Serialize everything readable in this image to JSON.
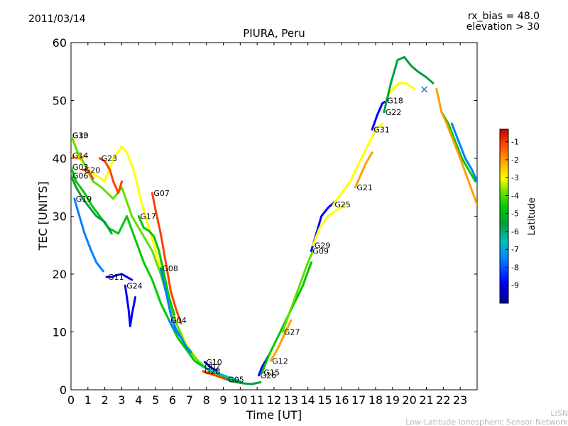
{
  "header": {
    "date": "2011/03/14",
    "rx_bias": "rx_bias = 48.0",
    "elevation": "elevation > 30"
  },
  "credit": {
    "line1": "LISN",
    "line2": "Low-Latitude Ionospheric Sensor Network"
  },
  "colors": {
    "latitude_scale": [
      "#00008f",
      "#0000ff",
      "#0080ff",
      "#00c0c0",
      "#00a040",
      "#00c800",
      "#60e000",
      "#ffff00",
      "#ffa000",
      "#ff4000",
      "#c00000"
    ]
  },
  "chart_data": {
    "type": "scatter",
    "title": "PIURA, Peru",
    "xlabel": "Time [UT]",
    "ylabel": "TEC [UNITS]",
    "xlim": [
      0,
      24
    ],
    "ylim": [
      0,
      60
    ],
    "xticks": [
      "0",
      "1",
      "2",
      "3",
      "4",
      "5",
      "6",
      "7",
      "8",
      "9",
      "10",
      "11",
      "12",
      "13",
      "14",
      "15",
      "16",
      "17",
      "18",
      "19",
      "20",
      "21",
      "22",
      "23"
    ],
    "yticks": [
      "0",
      "10",
      "20",
      "30",
      "40",
      "50",
      "60"
    ],
    "colorbar": {
      "label": "Latitude",
      "range": [
        -10,
        -0.3
      ],
      "ticks": [
        "-1",
        "-2",
        "-3",
        "-4",
        "-5",
        "-6",
        "-7",
        "-8",
        "-9"
      ]
    },
    "marker_label": "×",
    "series": [
      {
        "name": "G13",
        "color_lat": -3,
        "points": [
          [
            0,
            44
          ],
          [
            0.5,
            40
          ],
          [
            1,
            38
          ],
          [
            1.5,
            37
          ],
          [
            2,
            36
          ],
          [
            2.5,
            40
          ],
          [
            3,
            42
          ],
          [
            3.3,
            41
          ],
          [
            3.7,
            38
          ],
          [
            4.2,
            32
          ],
          [
            4.8,
            26
          ],
          [
            5.3,
            21
          ],
          [
            5.8,
            15
          ],
          [
            6.3,
            11
          ],
          [
            6.8,
            8
          ],
          [
            7.5,
            5
          ],
          [
            8.3,
            3
          ],
          [
            9,
            2
          ],
          [
            10,
            1.2
          ]
        ]
      },
      {
        "name": "G30",
        "color_lat": -4.5,
        "points": [
          [
            0,
            44
          ],
          [
            0.4,
            41
          ],
          [
            0.8,
            39
          ],
          [
            1.3,
            36
          ],
          [
            1.8,
            35
          ],
          [
            2.5,
            33
          ],
          [
            3,
            35
          ],
          [
            3.6,
            30
          ],
          [
            4.2,
            27
          ],
          [
            4.8,
            24
          ],
          [
            5.3,
            20
          ],
          [
            5.8,
            15
          ],
          [
            6.3,
            11
          ],
          [
            6.8,
            7.5
          ],
          [
            7.5,
            5
          ],
          [
            8.3,
            3
          ],
          [
            9,
            2
          ],
          [
            10,
            1.2
          ]
        ]
      },
      {
        "name": "G14",
        "color_lat": -2,
        "points": [
          [
            0,
            40.5
          ],
          [
            0.3,
            40
          ],
          [
            0.6,
            40
          ],
          [
            0.8,
            40.5
          ]
        ]
      },
      {
        "name": "G03",
        "color_lat": -5,
        "points": [
          [
            0,
            38.5
          ],
          [
            0.3,
            36
          ],
          [
            0.8,
            34
          ],
          [
            1.2,
            32
          ],
          [
            1.7,
            30
          ],
          [
            2.2,
            28
          ],
          [
            2.8,
            27
          ],
          [
            3.3,
            30
          ],
          [
            3.8,
            26
          ],
          [
            4.3,
            22
          ],
          [
            4.8,
            19
          ],
          [
            5.3,
            15
          ],
          [
            5.8,
            12
          ],
          [
            6.3,
            9
          ],
          [
            6.8,
            7
          ],
          [
            7.3,
            5
          ],
          [
            7.8,
            4
          ],
          [
            8.5,
            3
          ],
          [
            9.3,
            2
          ]
        ]
      },
      {
        "name": "G06",
        "color_lat": -6,
        "points": [
          [
            0,
            37
          ],
          [
            0.3,
            35
          ],
          [
            0.7,
            33
          ],
          [
            1.1,
            31.5
          ],
          [
            1.5,
            30
          ],
          [
            2,
            29
          ],
          [
            2.4,
            27
          ]
        ]
      },
      {
        "name": "G20",
        "color_lat": -1.5,
        "points": [
          [
            0.7,
            38
          ],
          [
            0.9,
            38
          ],
          [
            1.1,
            37.5
          ],
          [
            1.3,
            36.5
          ]
        ]
      },
      {
        "name": "G23",
        "color_lat": -1.5,
        "points": [
          [
            1.7,
            40
          ],
          [
            2,
            39.5
          ],
          [
            2.3,
            38
          ],
          [
            2.5,
            36
          ],
          [
            2.8,
            34
          ],
          [
            3,
            36
          ]
        ]
      },
      {
        "name": "G19",
        "color_lat": -8,
        "points": [
          [
            0.2,
            33
          ],
          [
            0.5,
            30
          ],
          [
            0.8,
            27
          ],
          [
            1.2,
            24
          ],
          [
            1.5,
            22
          ],
          [
            1.9,
            20.5
          ]
        ]
      },
      {
        "name": "G07",
        "color_lat": -1.5,
        "points": [
          [
            4.8,
            34
          ],
          [
            5,
            31
          ],
          [
            5.3,
            27
          ],
          [
            5.6,
            22
          ],
          [
            5.9,
            17
          ],
          [
            6.2,
            14
          ],
          [
            6.5,
            11.5
          ]
        ]
      },
      {
        "name": "G17",
        "color_lat": -5.5,
        "points": [
          [
            4,
            30
          ],
          [
            4.3,
            28
          ],
          [
            4.6,
            27.5
          ],
          [
            4.9,
            26.5
          ],
          [
            5.2,
            24
          ],
          [
            5.5,
            20
          ],
          [
            5.8,
            16
          ],
          [
            6.1,
            13
          ]
        ]
      },
      {
        "name": "G08",
        "color_lat": -8,
        "points": [
          [
            5.3,
            21
          ],
          [
            5.6,
            17
          ],
          [
            5.9,
            13
          ],
          [
            6.2,
            10.5
          ],
          [
            6.5,
            9
          ]
        ]
      },
      {
        "name": "G04",
        "color_lat": -8.5,
        "points": [
          [
            5.8,
            12
          ],
          [
            6.1,
            10.5
          ],
          [
            6.5,
            9
          ],
          [
            6.8,
            7.5
          ],
          [
            7.1,
            6.5
          ]
        ]
      },
      {
        "name": "G11",
        "color_lat": -9.5,
        "points": [
          [
            2.1,
            19.5
          ],
          [
            2.4,
            19.5
          ],
          [
            2.7,
            19.8
          ],
          [
            3,
            20
          ],
          [
            3.3,
            19.5
          ],
          [
            3.6,
            19
          ]
        ]
      },
      {
        "name": "G24",
        "color_lat": -9.5,
        "points": [
          [
            3.2,
            18
          ],
          [
            3.4,
            14
          ],
          [
            3.5,
            11
          ],
          [
            3.6,
            13
          ],
          [
            3.8,
            16
          ]
        ]
      },
      {
        "name": "G10",
        "color_lat": -9,
        "points": [
          [
            7.9,
            4.8
          ],
          [
            8.1,
            4.3
          ],
          [
            8.3,
            3.8
          ],
          [
            8.6,
            3.3
          ]
        ]
      },
      {
        "name": "G02",
        "color_lat": -7.5,
        "points": [
          [
            7.8,
            4
          ],
          [
            8.2,
            3.4
          ],
          [
            8.6,
            3
          ],
          [
            9,
            2.5
          ],
          [
            9.5,
            2
          ],
          [
            10,
            1.5
          ]
        ]
      },
      {
        "name": "G28",
        "color_lat": -1.5,
        "points": [
          [
            7.8,
            3.2
          ],
          [
            8.2,
            2.8
          ],
          [
            8.6,
            2.4
          ],
          [
            9.1,
            1.9
          ],
          [
            9.6,
            1.4
          ],
          [
            10.2,
            1.1
          ]
        ]
      },
      {
        "name": "G05",
        "color_lat": -6.5,
        "points": [
          [
            9.2,
            1.8
          ],
          [
            9.7,
            1.4
          ],
          [
            10.2,
            1.1
          ],
          [
            10.7,
            1.0
          ],
          [
            11.2,
            1.3
          ]
        ]
      },
      {
        "name": "G26",
        "color_lat": -9.5,
        "points": [
          [
            11.1,
            2.5
          ],
          [
            11.3,
            4
          ],
          [
            11.5,
            5
          ],
          [
            11.7,
            6
          ]
        ]
      },
      {
        "name": "G12",
        "color_lat": -2,
        "points": [
          [
            11.8,
            5
          ],
          [
            12.2,
            7
          ],
          [
            12.6,
            9.5
          ],
          [
            13,
            12
          ]
        ]
      },
      {
        "name": "G15",
        "color_lat": -5.5,
        "points": [
          [
            11.3,
            3
          ],
          [
            11.7,
            6
          ],
          [
            12.2,
            9
          ],
          [
            12.7,
            12
          ],
          [
            13.2,
            15
          ],
          [
            13.7,
            18
          ],
          [
            14.2,
            22
          ]
        ]
      },
      {
        "name": "G27",
        "color_lat": -4,
        "points": [
          [
            12.5,
            10
          ],
          [
            13,
            14
          ],
          [
            13.5,
            18
          ],
          [
            14,
            22
          ],
          [
            14.3,
            24
          ]
        ]
      },
      {
        "name": "G09",
        "color_lat": -9,
        "points": [
          [
            14.2,
            24
          ],
          [
            14.5,
            27
          ],
          [
            14.8,
            30
          ],
          [
            15.2,
            31.5
          ],
          [
            15.6,
            32.5
          ]
        ]
      },
      {
        "name": "G29",
        "color_lat": -3.5,
        "points": [
          [
            14.3,
            25
          ],
          [
            14.7,
            28
          ],
          [
            15.2,
            30
          ],
          [
            15.7,
            31
          ],
          [
            16.2,
            32
          ]
        ]
      },
      {
        "name": "G21",
        "color_lat": -2,
        "points": [
          [
            16.8,
            35
          ],
          [
            17.1,
            37
          ],
          [
            17.4,
            39
          ],
          [
            17.8,
            41
          ]
        ]
      },
      {
        "name": "G25",
        "color_lat": -3.5,
        "points": [
          [
            15.5,
            32
          ],
          [
            16,
            34
          ],
          [
            16.5,
            36
          ],
          [
            17,
            39
          ],
          [
            17.5,
            42
          ],
          [
            18,
            45
          ],
          [
            18.4,
            46
          ]
        ]
      },
      {
        "name": "G31",
        "color_lat": -9.5,
        "points": [
          [
            17.8,
            45
          ],
          [
            18.1,
            47.5
          ],
          [
            18.4,
            49.5
          ],
          [
            18.7,
            50
          ]
        ]
      },
      {
        "name": "G18",
        "color_lat": -3,
        "points": [
          [
            18.6,
            50
          ],
          [
            19,
            52
          ],
          [
            19.4,
            53
          ],
          [
            19.8,
            53
          ],
          [
            20.3,
            52
          ]
        ]
      },
      {
        "name": "G22",
        "color_lat": -6,
        "points": [
          [
            18.5,
            48
          ],
          [
            18.9,
            53
          ],
          [
            19.3,
            57
          ],
          [
            19.7,
            57.5
          ],
          [
            20.1,
            56
          ],
          [
            20.5,
            55
          ],
          [
            21,
            54
          ],
          [
            21.4,
            53
          ]
        ]
      },
      {
        "name": "",
        "color_lat": -5.5,
        "points": [
          [
            21.9,
            48
          ],
          [
            22.3,
            46
          ],
          [
            22.7,
            43
          ],
          [
            23.1,
            40
          ],
          [
            23.5,
            38
          ],
          [
            23.9,
            36
          ]
        ]
      },
      {
        "name": "",
        "color_lat": -2.5,
        "points": [
          [
            21.6,
            52
          ],
          [
            21.9,
            48
          ],
          [
            22.2,
            46
          ],
          [
            22.6,
            43
          ],
          [
            23,
            40
          ],
          [
            23.5,
            36
          ],
          [
            24,
            32
          ]
        ]
      },
      {
        "name": "",
        "color_lat": -8.5,
        "points": [
          [
            22.5,
            46
          ],
          [
            22.9,
            43
          ],
          [
            23.3,
            40
          ],
          [
            23.7,
            38
          ],
          [
            24,
            36
          ]
        ]
      }
    ]
  }
}
